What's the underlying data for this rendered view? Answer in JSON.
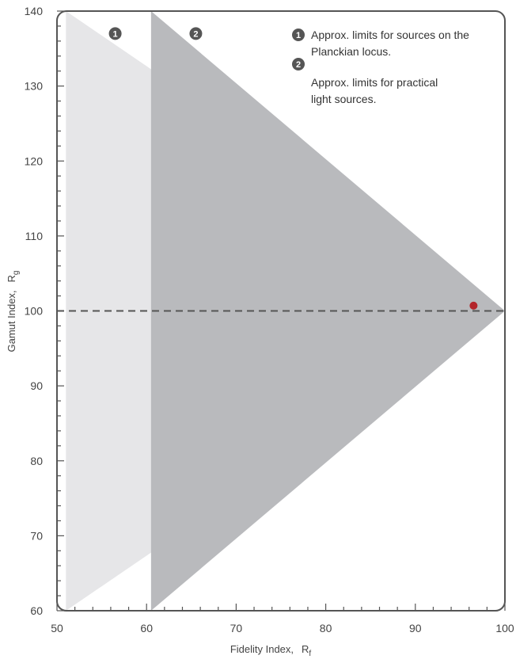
{
  "chart_data": {
    "type": "scatter",
    "xlabel": {
      "main": "Fidelity Index,",
      "symbol": "R",
      "sub": "f"
    },
    "ylabel": {
      "main": "Gamut Index,",
      "symbol": "R",
      "sub": "g"
    },
    "xlim": [
      50,
      100
    ],
    "ylim": [
      60,
      140
    ],
    "xticks": [
      50,
      60,
      70,
      80,
      90,
      100
    ],
    "yticks": [
      60,
      70,
      80,
      90,
      100,
      110,
      120,
      130,
      140
    ],
    "reference_line": {
      "y": 100,
      "style": "dashed"
    },
    "regions": [
      {
        "label": "1",
        "text_lines": [
          "Approx. limits for sources on the",
          "Planckian locus."
        ],
        "upper_boundary": [
          [
            51,
            140
          ],
          [
            100,
            100
          ]
        ],
        "lower_boundary": [
          [
            51,
            60
          ],
          [
            100,
            100
          ]
        ],
        "color": "#e6e6e8"
      },
      {
        "label": "2",
        "text_lines": [
          "Approx. limits for practical",
          "light sources."
        ],
        "upper_boundary": [
          [
            60.5,
            140
          ],
          [
            100,
            100
          ]
        ],
        "lower_boundary": [
          [
            60.5,
            60
          ],
          [
            100,
            100
          ]
        ],
        "color": "#b9babd"
      }
    ],
    "region_badges": [
      {
        "label": "1",
        "x": 56.5,
        "y": 137
      },
      {
        "label": "2",
        "x": 65.5,
        "y": 137
      }
    ],
    "points": [
      {
        "x": 96.5,
        "y": 100.7,
        "color": "#b3262b"
      }
    ],
    "colors": {
      "frame": "#555555",
      "dash": "#555555",
      "badge": "#555555",
      "background": "#ffffff"
    }
  }
}
